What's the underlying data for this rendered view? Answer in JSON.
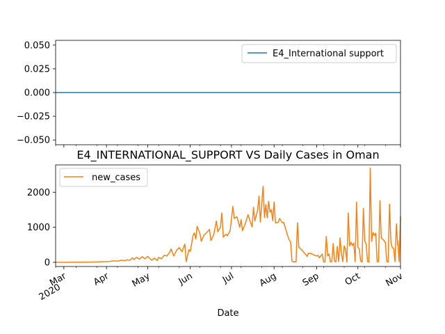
{
  "chart_data": [
    {
      "type": "line",
      "title": "",
      "xlabel": "",
      "ylabel": "",
      "ylim": [
        -0.055,
        0.055
      ],
      "yticks": [
        "0.050",
        "0.025",
        "0.000",
        "−0.025",
        "−0.050"
      ],
      "ytick_values": [
        0.05,
        0.025,
        0.0,
        -0.025,
        -0.05
      ],
      "legend_placement": "upper right",
      "series": [
        {
          "name": "E4_International support",
          "color": "#1f77b4",
          "x": [
            "2020-03-01",
            "2020-11-01"
          ],
          "values": [
            0,
            0
          ]
        }
      ]
    },
    {
      "type": "line",
      "title": "E4_INTERNATIONAL_SUPPORT VS Daily Cases in Oman",
      "xlabel": "Date",
      "ylabel": "",
      "ylim": [
        -120,
        2780
      ],
      "yticks": [
        "0",
        "1000",
        "2000"
      ],
      "ytick_values": [
        0,
        1000,
        2000
      ],
      "legend_placement": "upper left",
      "xlim": [
        "2020-02-24",
        "2020-11-01"
      ],
      "x_ticks": [
        {
          "date": "2020-03-01",
          "label": "Mar",
          "sub": "2020"
        },
        {
          "date": "2020-04-01",
          "label": "Apr",
          "sub": ""
        },
        {
          "date": "2020-05-01",
          "label": "May",
          "sub": ""
        },
        {
          "date": "2020-06-01",
          "label": "Jun",
          "sub": ""
        },
        {
          "date": "2020-07-01",
          "label": "Jul",
          "sub": ""
        },
        {
          "date": "2020-08-01",
          "label": "Aug",
          "sub": ""
        },
        {
          "date": "2020-09-01",
          "label": "Sep",
          "sub": ""
        },
        {
          "date": "2020-10-01",
          "label": "Oct",
          "sub": ""
        },
        {
          "date": "2020-11-01",
          "label": "Nov",
          "sub": ""
        }
      ],
      "series": [
        {
          "name": "new_cases",
          "color": "#ff7f0e",
          "points": [
            [
              "2020-02-24",
              2
            ],
            [
              "2020-03-01",
              0
            ],
            [
              "2020-03-10",
              5
            ],
            [
              "2020-03-15",
              3
            ],
            [
              "2020-03-20",
              8
            ],
            [
              "2020-03-25",
              12
            ],
            [
              "2020-03-30",
              20
            ],
            [
              "2020-04-03",
              25
            ],
            [
              "2020-04-06",
              40
            ],
            [
              "2020-04-09",
              30
            ],
            [
              "2020-04-12",
              60
            ],
            [
              "2020-04-14",
              45
            ],
            [
              "2020-04-16",
              70
            ],
            [
              "2020-04-18",
              55
            ],
            [
              "2020-04-20",
              130
            ],
            [
              "2020-04-21",
              80
            ],
            [
              "2020-04-23",
              140
            ],
            [
              "2020-04-25",
              90
            ],
            [
              "2020-04-27",
              160
            ],
            [
              "2020-04-29",
              100
            ],
            [
              "2020-05-01",
              170
            ],
            [
              "2020-05-03",
              90
            ],
            [
              "2020-05-04",
              60
            ],
            [
              "2020-05-06",
              120
            ],
            [
              "2020-05-08",
              50
            ],
            [
              "2020-05-09",
              140
            ],
            [
              "2020-05-11",
              100
            ],
            [
              "2020-05-13",
              200
            ],
            [
              "2020-05-15",
              180
            ],
            [
              "2020-05-17",
              290
            ],
            [
              "2020-05-18",
              380
            ],
            [
              "2020-05-20",
              180
            ],
            [
              "2020-05-22",
              340
            ],
            [
              "2020-05-24",
              420
            ],
            [
              "2020-05-26",
              300
            ],
            [
              "2020-05-28",
              520
            ],
            [
              "2020-05-29",
              20
            ],
            [
              "2020-05-31",
              360
            ],
            [
              "2020-06-01",
              310
            ],
            [
              "2020-06-03",
              770
            ],
            [
              "2020-06-04",
              840
            ],
            [
              "2020-06-05",
              660
            ],
            [
              "2020-06-06",
              1030
            ],
            [
              "2020-06-08",
              820
            ],
            [
              "2020-06-09",
              600
            ],
            [
              "2020-06-11",
              780
            ],
            [
              "2020-06-13",
              850
            ],
            [
              "2020-06-15",
              940
            ],
            [
              "2020-06-16",
              620
            ],
            [
              "2020-06-18",
              780
            ],
            [
              "2020-06-20",
              1180
            ],
            [
              "2020-06-21",
              870
            ],
            [
              "2020-06-23",
              1010
            ],
            [
              "2020-06-24",
              1410
            ],
            [
              "2020-06-25",
              720
            ],
            [
              "2020-06-27",
              800
            ],
            [
              "2020-06-28",
              760
            ],
            [
              "2020-06-30",
              900
            ],
            [
              "2020-07-02",
              1600
            ],
            [
              "2020-07-03",
              1250
            ],
            [
              "2020-07-05",
              1300
            ],
            [
              "2020-07-07",
              1000
            ],
            [
              "2020-07-08",
              1220
            ],
            [
              "2020-07-09",
              900
            ],
            [
              "2020-07-11",
              1100
            ],
            [
              "2020-07-13",
              1360
            ],
            [
              "2020-07-14",
              1240
            ],
            [
              "2020-07-16",
              1010
            ],
            [
              "2020-07-17",
              1570
            ],
            [
              "2020-07-18",
              1180
            ],
            [
              "2020-07-20",
              1490
            ],
            [
              "2020-07-21",
              1890
            ],
            [
              "2020-07-22",
              1150
            ],
            [
              "2020-07-24",
              2170
            ],
            [
              "2020-07-25",
              1280
            ],
            [
              "2020-07-26",
              1650
            ],
            [
              "2020-07-27",
              1270
            ],
            [
              "2020-07-28",
              1740
            ],
            [
              "2020-07-29",
              1430
            ],
            [
              "2020-07-30",
              1500
            ],
            [
              "2020-07-31",
              1190
            ],
            [
              "2020-08-01",
              1720
            ],
            [
              "2020-08-02",
              1130
            ],
            [
              "2020-08-04",
              1140
            ],
            [
              "2020-08-05",
              1250
            ],
            [
              "2020-08-07",
              1130
            ],
            [
              "2020-08-08",
              1140
            ],
            [
              "2020-08-09",
              1010
            ],
            [
              "2020-08-11",
              740
            ],
            [
              "2020-08-12",
              640
            ],
            [
              "2020-08-13",
              590
            ],
            [
              "2020-08-14",
              30
            ],
            [
              "2020-08-15",
              15
            ],
            [
              "2020-08-16",
              20
            ],
            [
              "2020-08-17",
              15
            ],
            [
              "2020-08-18",
              1130
            ],
            [
              "2020-08-19",
              430
            ],
            [
              "2020-08-21",
              360
            ],
            [
              "2020-08-23",
              270
            ],
            [
              "2020-08-25",
              170
            ],
            [
              "2020-08-26",
              260
            ],
            [
              "2020-08-28",
              250
            ],
            [
              "2020-08-30",
              210
            ],
            [
              "2020-09-01",
              180
            ],
            [
              "2020-09-02",
              200
            ],
            [
              "2020-09-03",
              130
            ],
            [
              "2020-09-05",
              240
            ],
            [
              "2020-09-06",
              20
            ],
            [
              "2020-09-07",
              10
            ],
            [
              "2020-09-08",
              740
            ],
            [
              "2020-09-09",
              180
            ],
            [
              "2020-09-10",
              240
            ],
            [
              "2020-09-11",
              15
            ],
            [
              "2020-09-12",
              20
            ],
            [
              "2020-09-13",
              540
            ],
            [
              "2020-09-14",
              30
            ],
            [
              "2020-09-15",
              15
            ],
            [
              "2020-09-16",
              450
            ],
            [
              "2020-09-17",
              20
            ],
            [
              "2020-09-18",
              700
            ],
            [
              "2020-09-19",
              260
            ],
            [
              "2020-09-20",
              20
            ],
            [
              "2020-09-21",
              470
            ],
            [
              "2020-09-22",
              370
            ],
            [
              "2020-09-23",
              10
            ],
            [
              "2020-09-24",
              1410
            ],
            [
              "2020-09-25",
              470
            ],
            [
              "2020-09-26",
              570
            ],
            [
              "2020-09-27",
              480
            ],
            [
              "2020-09-28",
              550
            ],
            [
              "2020-09-29",
              20
            ],
            [
              "2020-09-30",
              1720
            ],
            [
              "2020-10-01",
              430
            ],
            [
              "2020-10-02",
              380
            ],
            [
              "2020-10-03",
              30
            ],
            [
              "2020-10-04",
              10
            ],
            [
              "2020-10-05",
              1540
            ],
            [
              "2020-10-06",
              600
            ],
            [
              "2020-10-07",
              530
            ],
            [
              "2020-10-08",
              20
            ],
            [
              "2020-10-09",
              10
            ],
            [
              "2020-10-10",
              2690
            ],
            [
              "2020-10-11",
              600
            ],
            [
              "2020-10-12",
              850
            ],
            [
              "2020-10-13",
              770
            ],
            [
              "2020-10-14",
              830
            ],
            [
              "2020-10-15",
              20
            ],
            [
              "2020-10-16",
              20
            ],
            [
              "2020-10-17",
              1760
            ],
            [
              "2020-10-18",
              700
            ],
            [
              "2020-10-20",
              620
            ],
            [
              "2020-10-21",
              560
            ],
            [
              "2020-10-22",
              20
            ],
            [
              "2020-10-23",
              10
            ],
            [
              "2020-10-24",
              1660
            ],
            [
              "2020-10-25",
              570
            ],
            [
              "2020-10-26",
              420
            ],
            [
              "2020-10-27",
              400
            ],
            [
              "2020-10-28",
              20
            ],
            [
              "2020-10-29",
              1100
            ],
            [
              "2020-10-30",
              480
            ],
            [
              "2020-10-30",
              620
            ],
            [
              "2020-10-31",
              20
            ],
            [
              "2020-11-01",
              1310
            ]
          ]
        }
      ]
    }
  ]
}
